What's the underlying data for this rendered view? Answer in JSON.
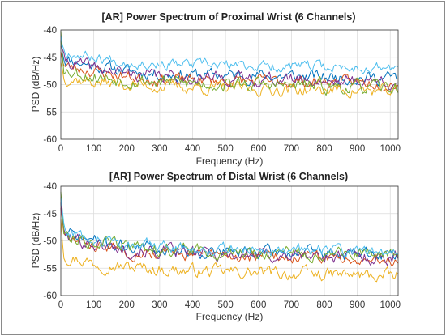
{
  "chart_data": [
    {
      "type": "line",
      "title": "[AR] Power Spectrum of Proximal Wrist (6 Channels)",
      "xlabel": "Frequency (Hz)",
      "ylabel": "PSD (dB/Hz)",
      "xlim": [
        0,
        1024
      ],
      "ylim": [
        -60,
        -40
      ],
      "xticks": [
        0,
        100,
        200,
        300,
        400,
        500,
        600,
        700,
        800,
        900,
        1000
      ],
      "yticks": [
        -60,
        -55,
        -50,
        -45,
        -40
      ],
      "grid": true,
      "legend": "none",
      "series": [
        {
          "color": "#0072BD",
          "start": -42,
          "levels": [
            -45.0,
            -46.5,
            -47.5,
            -48.0,
            -48.2,
            -48.3,
            -48.4,
            -48.5,
            -48.6,
            -48.7,
            -48.8
          ],
          "amp": 1.3,
          "seed": 11
        },
        {
          "color": "#D95319",
          "start": -44,
          "levels": [
            -46.5,
            -47.5,
            -48.5,
            -49.0,
            -49.2,
            -49.3,
            -49.4,
            -49.5,
            -49.5,
            -49.6,
            -49.7
          ],
          "amp": 1.2,
          "seed": 23
        },
        {
          "color": "#EDB120",
          "start": -46,
          "levels": [
            -48.5,
            -49.5,
            -50.0,
            -50.3,
            -50.5,
            -50.7,
            -50.8,
            -50.9,
            -51.0,
            -51.1,
            -51.3
          ],
          "amp": 1.3,
          "seed": 37
        },
        {
          "color": "#7E2F8E",
          "start": -43,
          "levels": [
            -45.5,
            -47.0,
            -48.0,
            -48.5,
            -48.7,
            -48.8,
            -49.0,
            -49.1,
            -49.2,
            -49.3,
            -49.4
          ],
          "amp": 1.3,
          "seed": 41
        },
        {
          "color": "#77AC30",
          "start": -40,
          "levels": [
            -47.0,
            -48.5,
            -49.0,
            -49.5,
            -49.7,
            -49.9,
            -50.0,
            -50.2,
            -50.3,
            -50.5,
            -50.7
          ],
          "amp": 1.4,
          "seed": 53
        },
        {
          "color": "#4DBEEE",
          "start": -41,
          "levels": [
            -43.8,
            -45.0,
            -45.8,
            -46.2,
            -46.4,
            -46.5,
            -46.6,
            -46.7,
            -46.8,
            -46.9,
            -47.0
          ],
          "amp": 1.1,
          "seed": 67
        }
      ]
    },
    {
      "type": "line",
      "title": "[AR] Power Spectrum of Distal Wrist (6 Channels)",
      "xlabel": "Frequency (Hz)",
      "ylabel": "PSD (dB/Hz)",
      "xlim": [
        0,
        1024
      ],
      "ylim": [
        -60,
        -40
      ],
      "xticks": [
        0,
        100,
        200,
        300,
        400,
        500,
        600,
        700,
        800,
        900,
        1000
      ],
      "yticks": [
        -60,
        -55,
        -50,
        -45,
        -40
      ],
      "grid": true,
      "legend": "none",
      "series": [
        {
          "color": "#0072BD",
          "start": -43,
          "levels": [
            -48.5,
            -50.0,
            -51.0,
            -51.5,
            -51.8,
            -52.0,
            -52.1,
            -52.2,
            -52.3,
            -52.4,
            -52.5
          ],
          "amp": 1.3,
          "seed": 71
        },
        {
          "color": "#D95319",
          "start": -44,
          "levels": [
            -49.5,
            -50.8,
            -51.8,
            -52.3,
            -52.6,
            -52.8,
            -52.9,
            -53.0,
            -53.1,
            -53.2,
            -53.4
          ],
          "amp": 1.2,
          "seed": 83
        },
        {
          "color": "#EDB120",
          "start": -46,
          "levels": [
            -52.5,
            -54.0,
            -54.8,
            -55.2,
            -55.5,
            -55.7,
            -55.9,
            -56.0,
            -56.2,
            -56.3,
            -56.5
          ],
          "amp": 1.3,
          "seed": 97
        },
        {
          "color": "#7E2F8E",
          "start": -43,
          "levels": [
            -49.0,
            -50.5,
            -51.5,
            -52.0,
            -52.3,
            -52.5,
            -52.6,
            -52.7,
            -52.8,
            -52.9,
            -53.0
          ],
          "amp": 1.4,
          "seed": 101
        },
        {
          "color": "#77AC30",
          "start": -41,
          "levels": [
            -48.5,
            -50.0,
            -51.0,
            -51.5,
            -51.8,
            -52.0,
            -52.2,
            -52.3,
            -52.4,
            -52.5,
            -52.6
          ],
          "amp": 1.3,
          "seed": 113
        },
        {
          "color": "#4DBEEE",
          "start": -42,
          "levels": [
            -48.0,
            -49.5,
            -50.5,
            -51.0,
            -51.3,
            -51.5,
            -51.6,
            -51.7,
            -51.8,
            -51.9,
            -52.0
          ],
          "amp": 1.2,
          "seed": 127
        }
      ]
    }
  ]
}
